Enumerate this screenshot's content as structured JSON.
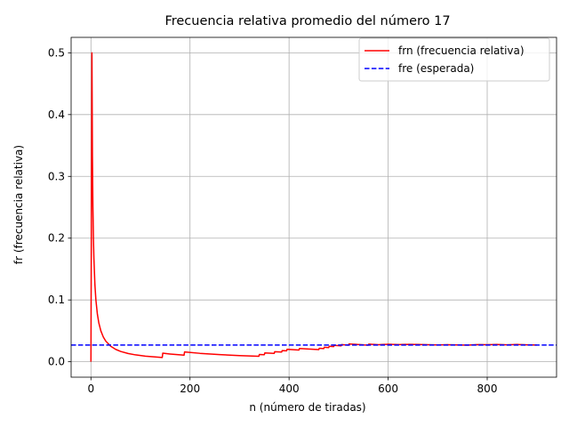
{
  "chart_data": {
    "type": "line",
    "title": "Frecuencia relativa promedio del número 17",
    "xlabel": "n (número de tiradas)",
    "ylabel": "fr (frecuencia relativa)",
    "xlim": [
      -40,
      940
    ],
    "ylim": [
      -0.025,
      0.525
    ],
    "xticks": [
      0,
      200,
      400,
      600,
      800
    ],
    "yticks": [
      0.0,
      0.1,
      0.2,
      0.3,
      0.4,
      0.5
    ],
    "xtick_labels": [
      "0",
      "200",
      "400",
      "600",
      "800"
    ],
    "ytick_labels": [
      "0.0",
      "0.1",
      "0.2",
      "0.3",
      "0.4",
      "0.5"
    ],
    "grid": true,
    "legend_position": "top-right",
    "series": [
      {
        "name": "frn (frecuencia relativa)",
        "color": "#ff0000",
        "style": "solid",
        "x": [
          0,
          2,
          3,
          4,
          5,
          6,
          8,
          10,
          13,
          16,
          20,
          25,
          30,
          40,
          50,
          60,
          75,
          90,
          110,
          130,
          144,
          145,
          160,
          180,
          188,
          189,
          220,
          260,
          300,
          339,
          340,
          350,
          351,
          370,
          371,
          385,
          386,
          395,
          396,
          420,
          421,
          460,
          461,
          470,
          471,
          480,
          481,
          490,
          491,
          505,
          506,
          520,
          521,
          530,
          531,
          550,
          551,
          560,
          561,
          580,
          600,
          620,
          640,
          660,
          680,
          700,
          720,
          740,
          760,
          780,
          800,
          820,
          840,
          860,
          880,
          900
        ],
        "y": [
          0.0,
          0.5,
          0.333,
          0.25,
          0.2,
          0.167,
          0.125,
          0.1,
          0.077,
          0.0625,
          0.05,
          0.04,
          0.0333,
          0.025,
          0.02,
          0.0167,
          0.0133,
          0.0111,
          0.0091,
          0.0077,
          0.0069,
          0.0138,
          0.0125,
          0.0111,
          0.0106,
          0.0159,
          0.0136,
          0.0115,
          0.01,
          0.0088,
          0.0118,
          0.0114,
          0.0142,
          0.0135,
          0.0162,
          0.0156,
          0.0181,
          0.0177,
          0.0202,
          0.019,
          0.0214,
          0.0196,
          0.0217,
          0.0213,
          0.0234,
          0.0229,
          0.025,
          0.0245,
          0.0265,
          0.0257,
          0.0277,
          0.0269,
          0.0288,
          0.0283,
          0.0283,
          0.0273,
          0.0272,
          0.0268,
          0.0285,
          0.0276,
          0.0283,
          0.0277,
          0.0281,
          0.028,
          0.0276,
          0.0271,
          0.0275,
          0.0272,
          0.0268,
          0.0277,
          0.0275,
          0.0279,
          0.0274,
          0.0279,
          0.0273,
          0.027
        ]
      },
      {
        "name": "fre (esperada)",
        "color": "#0000ff",
        "style": "dashed",
        "y": 0.027
      }
    ]
  }
}
